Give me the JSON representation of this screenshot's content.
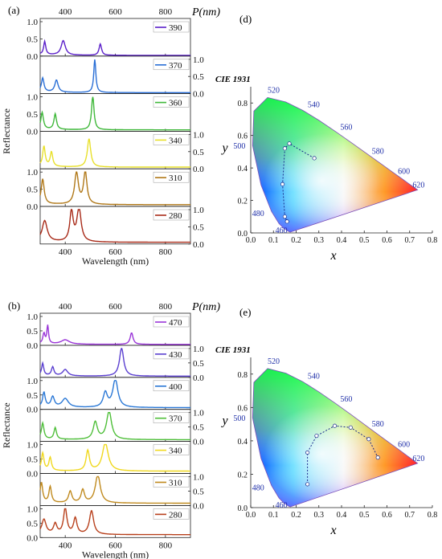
{
  "figure": {
    "panel_labels": [
      "(a)",
      "(b)",
      "(d)",
      "(e)"
    ],
    "axis_title_top": "P(nm)",
    "xlabel": "Wavelength (nm)",
    "ylabel": "Reflectance",
    "cie_title": "CIE 1931",
    "cie_xlabel": "x",
    "cie_ylabel": "y"
  },
  "chart_data": [
    {
      "id": "a",
      "type": "line",
      "title": "",
      "xlabel": "Wavelength (nm)",
      "ylabel": "Reflectance",
      "top_axis_label": "P(nm)",
      "xlim": [
        300,
        900
      ],
      "ylim": [
        0,
        1
      ],
      "xticks": [
        400,
        600,
        800
      ],
      "yticks_left": [
        "0.0",
        "0.5",
        "1.0"
      ],
      "series": [
        {
          "name": "390",
          "color": "#5a1fc9",
          "base": 0.02,
          "peaks": [
            [
              318,
              0.38,
              5
            ],
            [
              392,
              0.42,
              10
            ],
            [
              540,
              0.33,
              6
            ]
          ]
        },
        {
          "name": "370",
          "color": "#2a6fd6",
          "base": 0.03,
          "peaks": [
            [
              310,
              0.4,
              6
            ],
            [
              365,
              0.35,
              8
            ],
            [
              518,
              0.96,
              5
            ]
          ]
        },
        {
          "name": "360",
          "color": "#3fb83a",
          "base": 0.04,
          "peaks": [
            [
              308,
              0.48,
              6
            ],
            [
              360,
              0.45,
              6
            ],
            [
              510,
              0.98,
              6
            ]
          ]
        },
        {
          "name": "340",
          "color": "#e8e02a",
          "base": 0.05,
          "peaks": [
            [
              315,
              0.58,
              6
            ],
            [
              345,
              0.42,
              6
            ],
            [
              495,
              0.82,
              8
            ]
          ]
        },
        {
          "name": "310",
          "color": "#b07818",
          "base": 0.05,
          "peaks": [
            [
              310,
              0.72,
              7
            ],
            [
              445,
              0.92,
              9
            ],
            [
              480,
              0.95,
              8
            ]
          ]
        },
        {
          "name": "280",
          "color": "#a82a18",
          "base": 0.05,
          "peaks": [
            [
              318,
              0.6,
              12
            ],
            [
              425,
              0.88,
              8
            ],
            [
              455,
              0.98,
              10
            ]
          ]
        }
      ]
    },
    {
      "id": "b",
      "type": "line",
      "title": "",
      "xlabel": "Wavelength (nm)",
      "ylabel": "Reflectance",
      "top_axis_label": "P(nm)",
      "xlim": [
        300,
        900
      ],
      "ylim": [
        0,
        1
      ],
      "xticks": [
        400,
        600,
        800
      ],
      "yticks_left": [
        "0.0",
        "0.5",
        "1.0"
      ],
      "series": [
        {
          "name": "470",
          "color": "#9a35d8",
          "base": 0.03,
          "peaks": [
            [
              315,
              0.35,
              5
            ],
            [
              330,
              0.62,
              4
            ],
            [
              400,
              0.15,
              20
            ],
            [
              665,
              0.4,
              7
            ]
          ]
        },
        {
          "name": "430",
          "color": "#5a3fd0",
          "base": 0.04,
          "peaks": [
            [
              310,
              0.42,
              5
            ],
            [
              350,
              0.3,
              6
            ],
            [
              400,
              0.22,
              12
            ],
            [
              625,
              0.98,
              10
            ]
          ]
        },
        {
          "name": "400",
          "color": "#2a78d6",
          "base": 0.06,
          "peaks": [
            [
              315,
              0.5,
              6
            ],
            [
              350,
              0.35,
              8
            ],
            [
              400,
              0.3,
              15
            ],
            [
              560,
              0.5,
              10
            ],
            [
              600,
              0.98,
              12
            ]
          ]
        },
        {
          "name": "370",
          "color": "#4fbf3a",
          "base": 0.06,
          "peaks": [
            [
              310,
              0.55,
              6
            ],
            [
              360,
              0.4,
              6
            ],
            [
              520,
              0.6,
              10
            ],
            [
              575,
              0.98,
              12
            ]
          ]
        },
        {
          "name": "340",
          "color": "#f0d81e",
          "base": 0.08,
          "peaks": [
            [
              310,
              0.6,
              6
            ],
            [
              340,
              0.45,
              6
            ],
            [
              490,
              0.7,
              8
            ],
            [
              560,
              0.98,
              14
            ]
          ]
        },
        {
          "name": "310",
          "color": "#c08a1e",
          "base": 0.08,
          "peaks": [
            [
              305,
              0.68,
              6
            ],
            [
              340,
              0.55,
              6
            ],
            [
              420,
              0.4,
              8
            ],
            [
              470,
              0.45,
              8
            ],
            [
              530,
              0.98,
              12
            ]
          ]
        },
        {
          "name": "280",
          "color": "#b8401c",
          "base": 0.1,
          "peaks": [
            [
              315,
              0.5,
              10
            ],
            [
              360,
              0.35,
              8
            ],
            [
              400,
              0.9,
              8
            ],
            [
              440,
              0.55,
              8
            ],
            [
              505,
              0.82,
              10
            ]
          ]
        }
      ]
    },
    {
      "id": "d",
      "type": "scatter",
      "title": "CIE 1931",
      "xlabel": "x",
      "ylabel": "y",
      "xlim": [
        0,
        0.8
      ],
      "ylim": [
        0,
        0.9
      ],
      "xticks": [
        "0.0",
        "0.1",
        "0.2",
        "0.3",
        "0.4",
        "0.5",
        "0.6",
        "0.7",
        "0.8"
      ],
      "yticks": [
        "0.0",
        "0.2",
        "0.4",
        "0.6",
        "0.8"
      ],
      "wavelength_labels": [
        "460",
        "480",
        "500",
        "520",
        "540",
        "560",
        "580",
        "600",
        "620"
      ],
      "points": [
        [
          0.28,
          0.46
        ],
        [
          0.17,
          0.55
        ],
        [
          0.15,
          0.52
        ],
        [
          0.14,
          0.3
        ],
        [
          0.15,
          0.1
        ],
        [
          0.16,
          0.07
        ]
      ]
    },
    {
      "id": "e",
      "type": "scatter",
      "title": "CIE 1931",
      "xlabel": "x",
      "ylabel": "y",
      "xlim": [
        0,
        0.8
      ],
      "ylim": [
        0,
        0.9
      ],
      "xticks": [
        "0.0",
        "0.1",
        "0.2",
        "0.3",
        "0.4",
        "0.5",
        "0.6",
        "0.7",
        "0.8"
      ],
      "yticks": [
        "0.0",
        "0.2",
        "0.4",
        "0.6",
        "0.8"
      ],
      "wavelength_labels": [
        "460",
        "480",
        "500",
        "520",
        "540",
        "560",
        "580",
        "600",
        "620"
      ],
      "points": [
        [
          0.25,
          0.14
        ],
        [
          0.25,
          0.33
        ],
        [
          0.29,
          0.43
        ],
        [
          0.37,
          0.49
        ],
        [
          0.44,
          0.48
        ],
        [
          0.52,
          0.41
        ],
        [
          0.56,
          0.3
        ]
      ]
    }
  ]
}
